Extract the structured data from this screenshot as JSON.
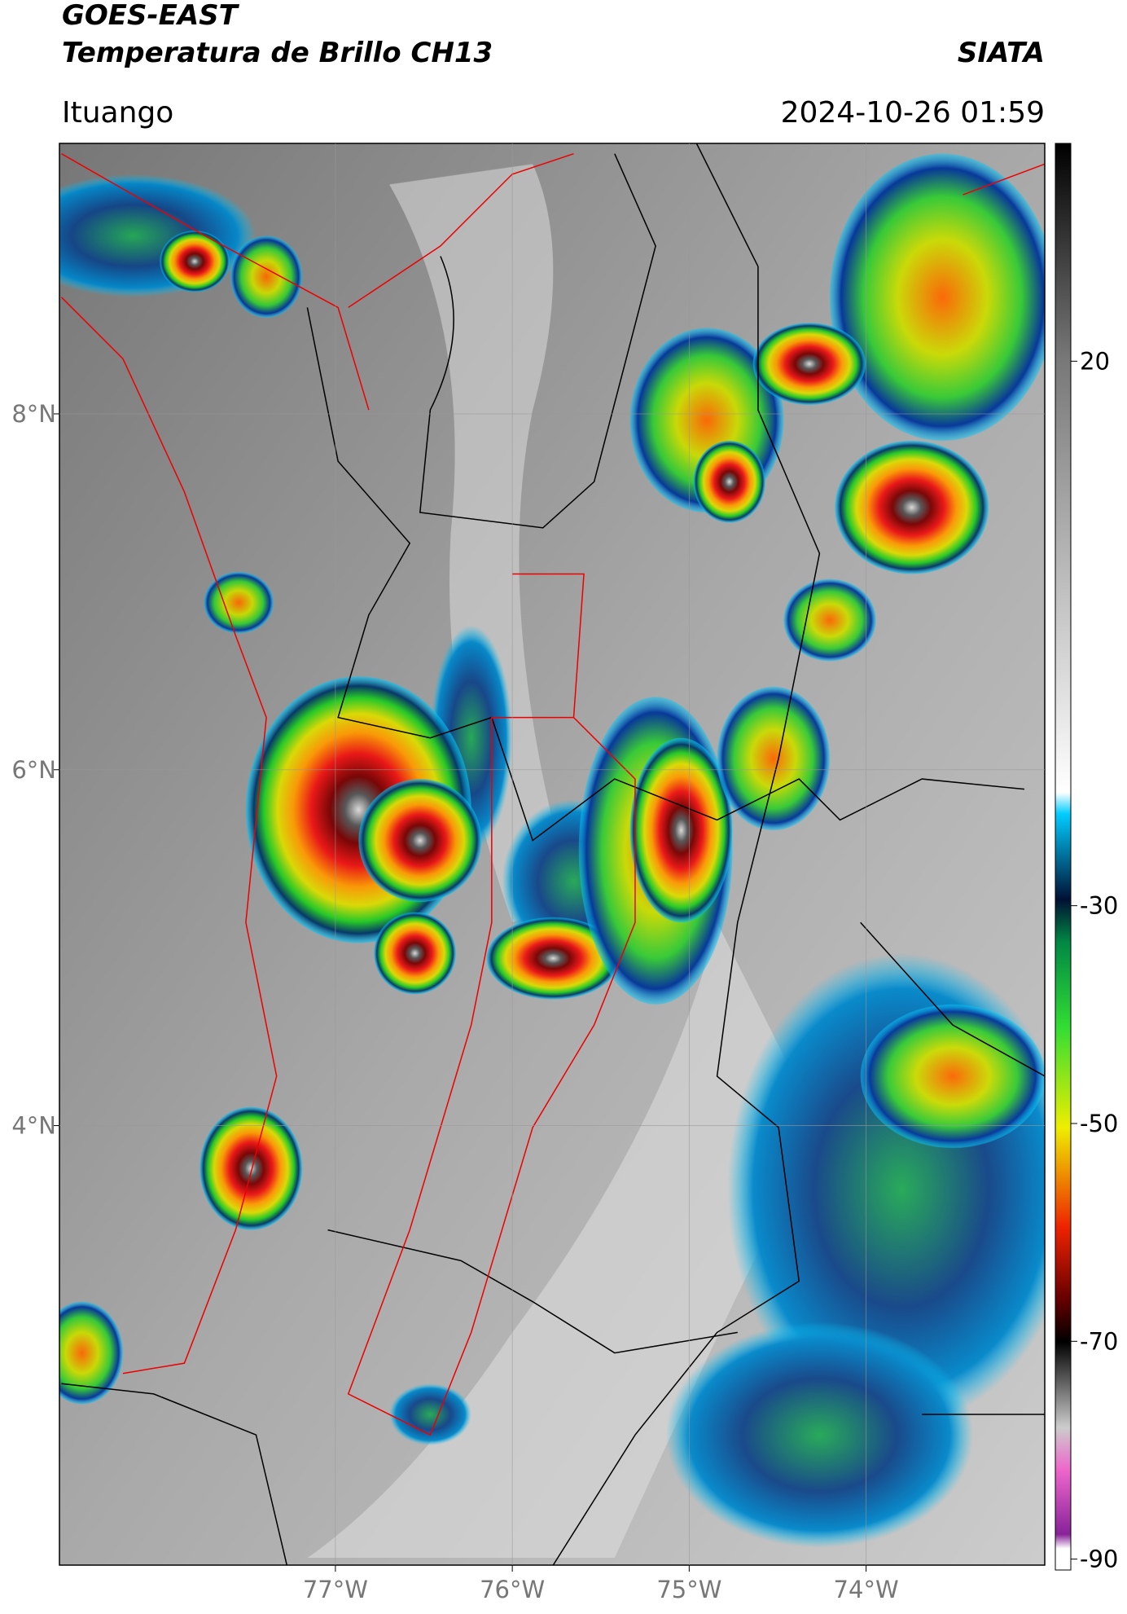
{
  "map": {
    "title": "GOES-EAST",
    "subtitle": "Temperatura de Brillo CH13",
    "source": "SIATA",
    "region": "Ituango",
    "datetime": "2024-10-26 01:59",
    "xlim": [
      -78.56,
      -72.99
    ],
    "ylim": [
      1.53,
      9.52
    ],
    "xticks": [
      {
        "value": -77,
        "label": "77°W"
      },
      {
        "value": -76,
        "label": "76°W"
      },
      {
        "value": -75,
        "label": "75°W"
      },
      {
        "value": -74,
        "label": "74°W"
      }
    ],
    "yticks": [
      {
        "value": 8,
        "label": "8°N"
      },
      {
        "value": 6,
        "label": "6°N"
      },
      {
        "value": 4,
        "label": "4°N"
      }
    ],
    "grid": true,
    "colorbar": {
      "clim": [
        -91,
        40
      ],
      "ticks": [
        20,
        -30,
        -50,
        -70,
        -90
      ]
    }
  }
}
